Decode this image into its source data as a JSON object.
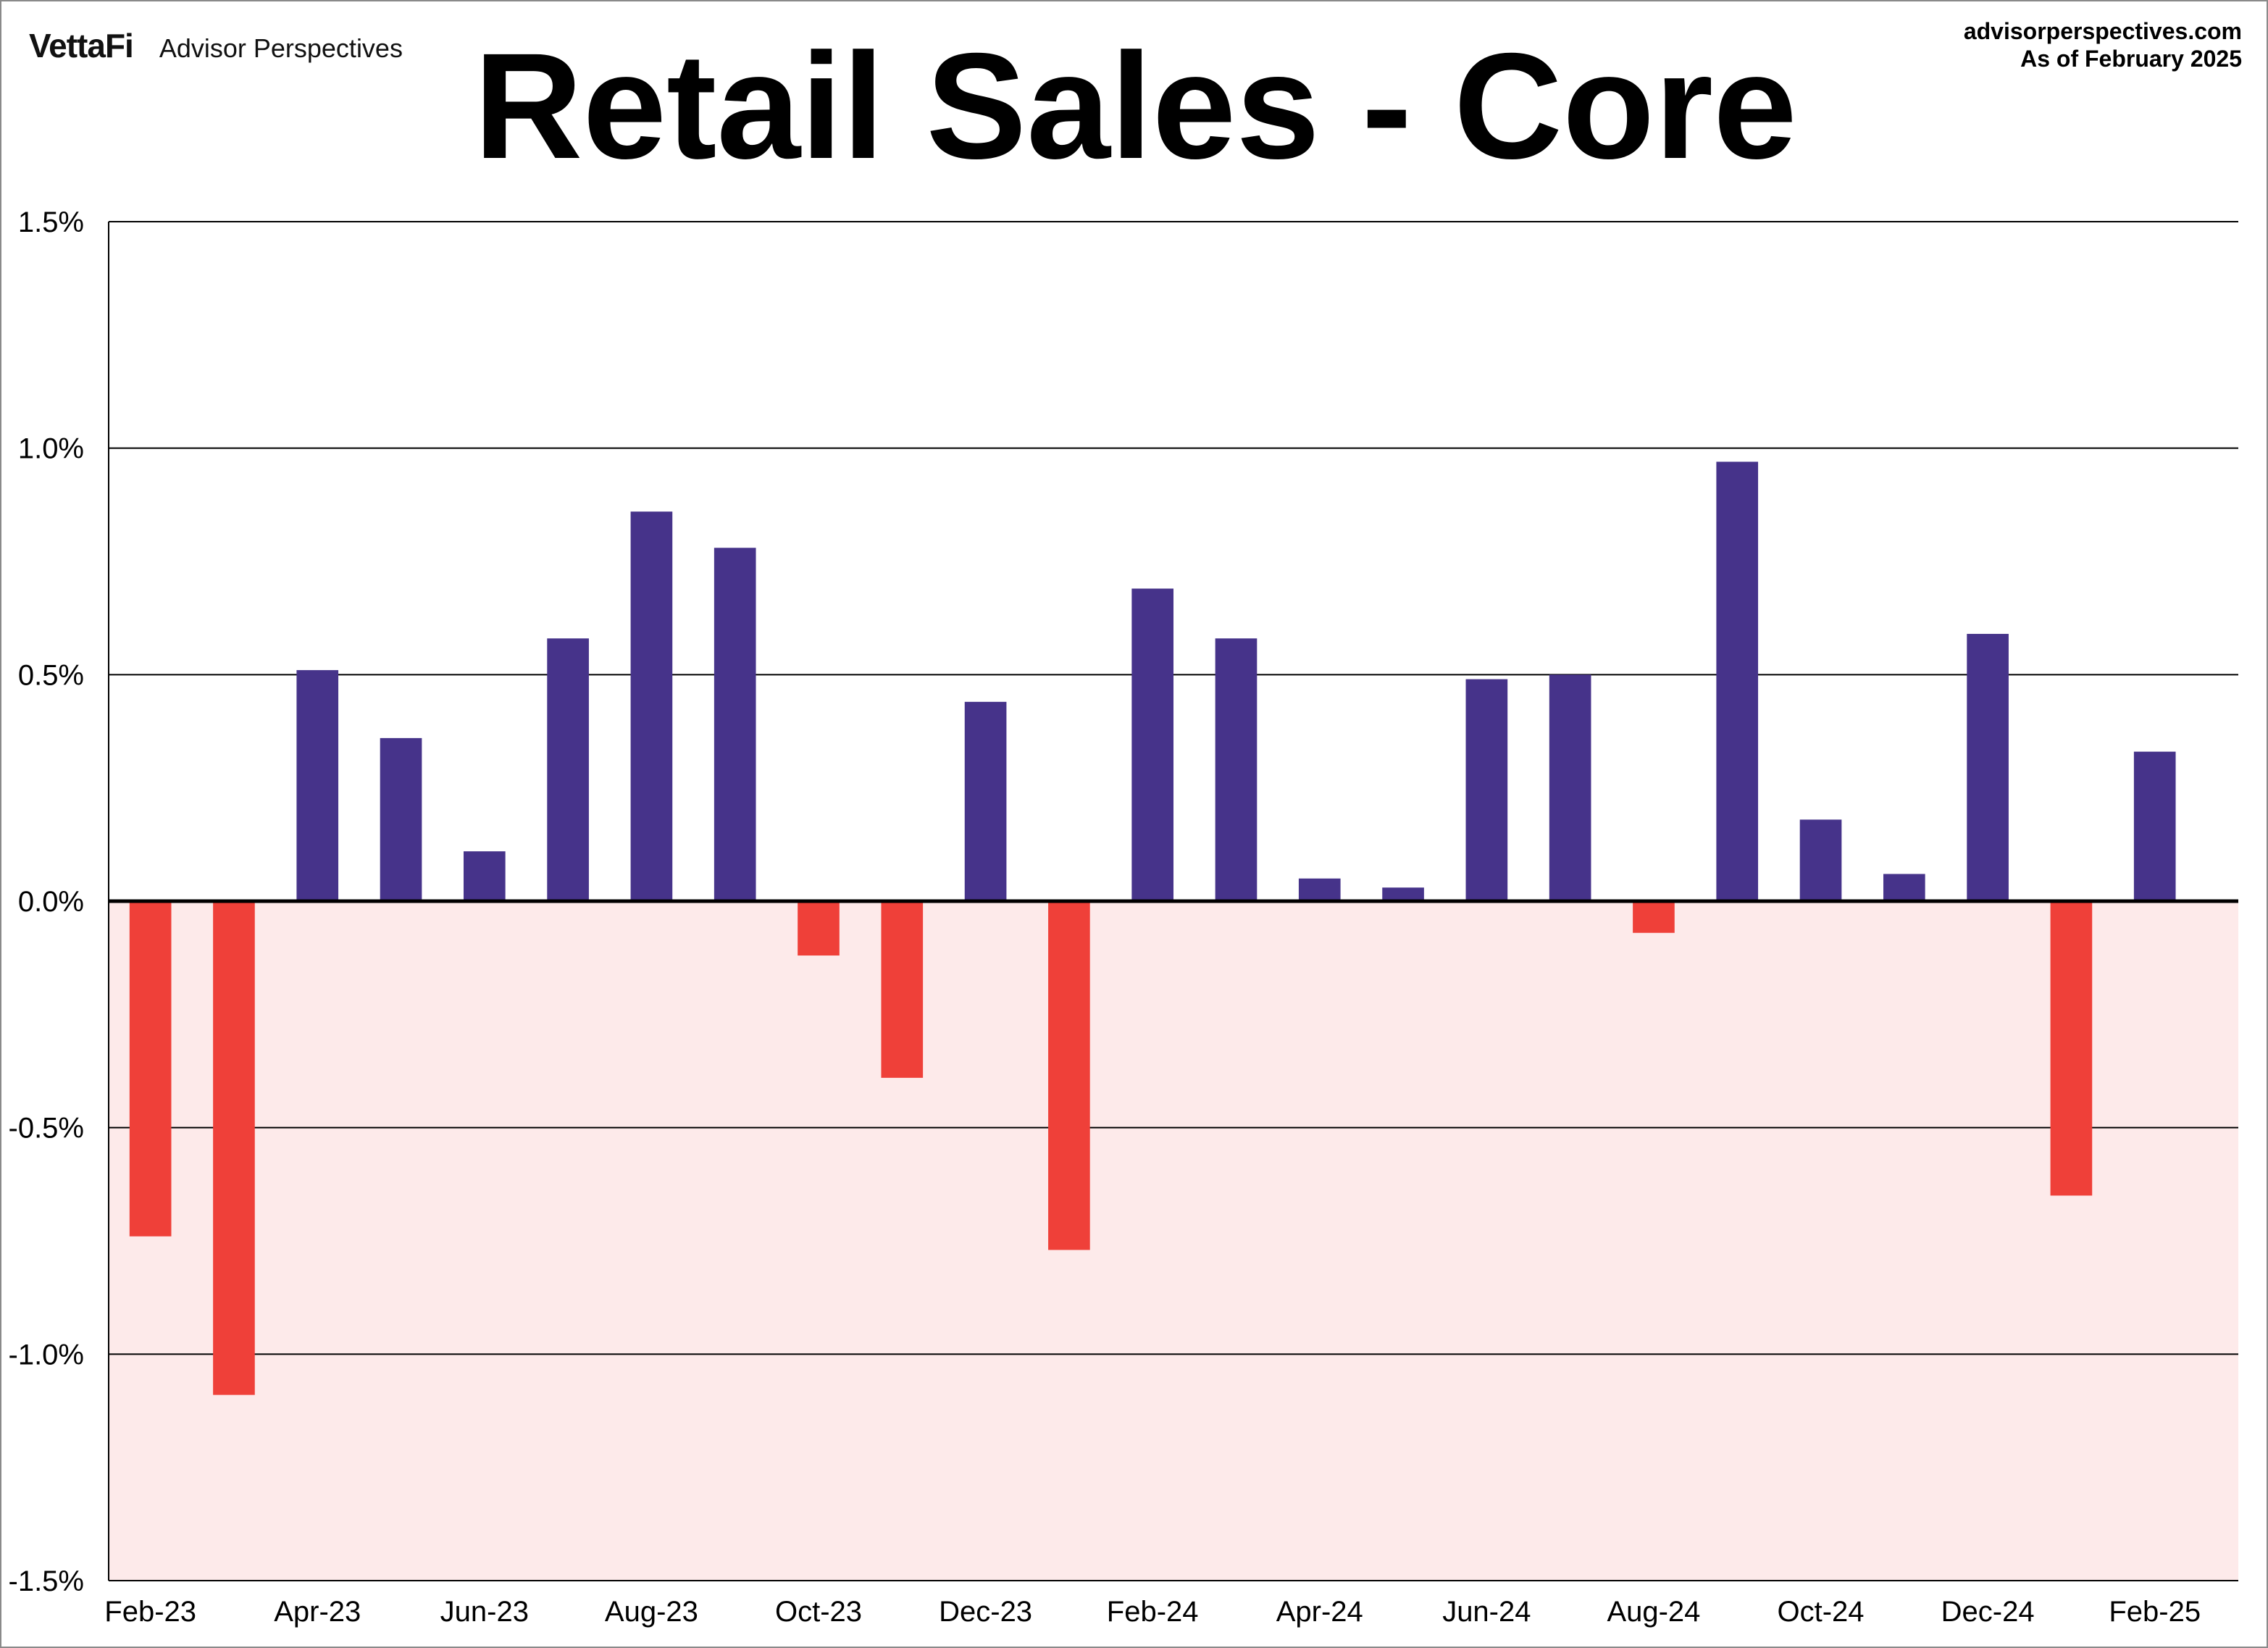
{
  "header": {
    "brand_logo": "VettaFi",
    "brand_name": "Advisor Perspectives",
    "source_url": "advisorperspectives.com",
    "as_of": "As of February 2025"
  },
  "colors": {
    "positive": "#46338a",
    "negative": "#ef4039",
    "negative_zone": "#fdeaea",
    "grid": "#000000"
  },
  "chart_data": {
    "type": "bar",
    "title": "Retail Sales - Core",
    "xlabel": "",
    "ylabel": "",
    "ylim": [
      -1.5,
      1.5
    ],
    "yticks": [
      1.5,
      1.0,
      0.5,
      0.0,
      -0.5,
      -1.0,
      -1.5
    ],
    "ytick_labels": [
      "1.5%",
      "1.0%",
      "0.5%",
      "0.0%",
      "-0.5%",
      "-1.0%",
      "-1.5%"
    ],
    "grid": true,
    "negative_region_shaded": true,
    "categories": [
      "Feb-23",
      "Mar-23",
      "Apr-23",
      "May-23",
      "Jun-23",
      "Jul-23",
      "Aug-23",
      "Sep-23",
      "Oct-23",
      "Nov-23",
      "Dec-23",
      "Jan-24",
      "Feb-24",
      "Mar-24",
      "Apr-24",
      "May-24",
      "Jun-24",
      "Jul-24",
      "Aug-24",
      "Sep-24",
      "Oct-24",
      "Nov-24",
      "Dec-24",
      "Jan-25",
      "Feb-25"
    ],
    "xtick_labels": [
      "Feb-23",
      "Apr-23",
      "Jun-23",
      "Aug-23",
      "Oct-23",
      "Dec-23",
      "Feb-24",
      "Apr-24",
      "Jun-24",
      "Aug-24",
      "Oct-24",
      "Dec-24",
      "Feb-25"
    ],
    "values": [
      -0.74,
      -1.09,
      0.51,
      0.36,
      0.11,
      0.58,
      0.86,
      0.78,
      -0.12,
      -0.39,
      0.44,
      -0.77,
      0.69,
      0.58,
      0.05,
      0.03,
      0.49,
      0.5,
      -0.07,
      0.97,
      0.18,
      0.06,
      0.59,
      -0.65,
      0.33
    ]
  }
}
